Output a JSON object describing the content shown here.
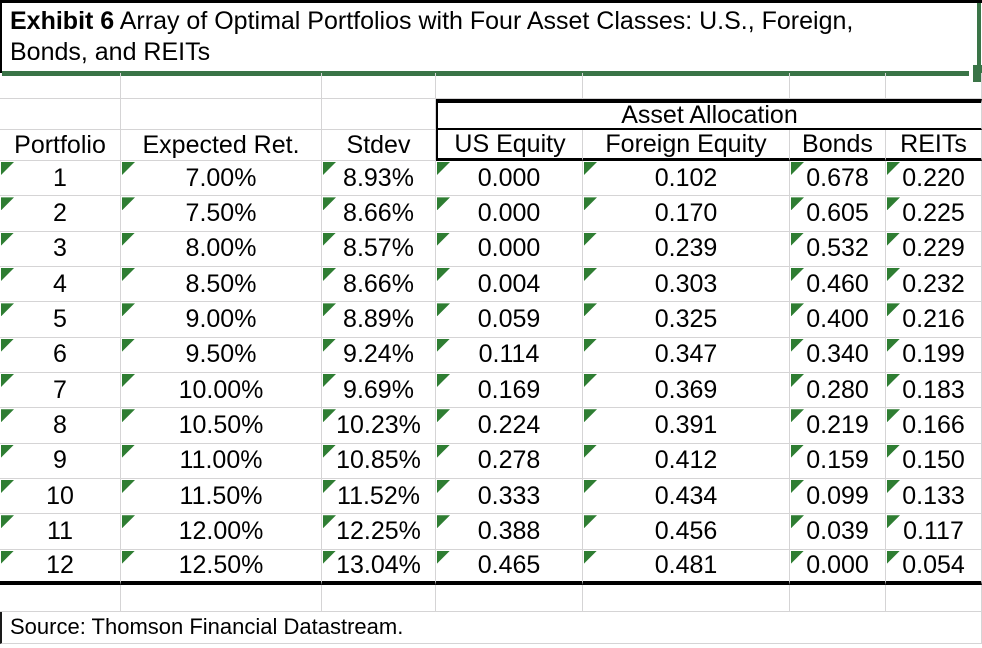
{
  "title": {
    "bold": "Exhibit 6",
    "line1_rest": " Array of Optimal Portfolios with Four Asset Classes: U.S., Foreign,",
    "line2": "Bonds, and REITs"
  },
  "colors": {
    "title_rule_green": "#3a7447",
    "flag_triangle_green": "#2e7d32",
    "gridline_gray": "#d5d4d5"
  },
  "table": {
    "group_header": "Asset Allocation",
    "columns": [
      "Portfolio",
      "Expected Ret.",
      "Stdev",
      "US Equity",
      "Foreign Equity",
      "Bonds",
      "REITs"
    ],
    "rows": [
      [
        "1",
        "7.00%",
        "8.93%",
        "0.000",
        "0.102",
        "0.678",
        "0.220"
      ],
      [
        "2",
        "7.50%",
        "8.66%",
        "0.000",
        "0.170",
        "0.605",
        "0.225"
      ],
      [
        "3",
        "8.00%",
        "8.57%",
        "0.000",
        "0.239",
        "0.532",
        "0.229"
      ],
      [
        "4",
        "8.50%",
        "8.66%",
        "0.004",
        "0.303",
        "0.460",
        "0.232"
      ],
      [
        "5",
        "9.00%",
        "8.89%",
        "0.059",
        "0.325",
        "0.400",
        "0.216"
      ],
      [
        "6",
        "9.50%",
        "9.24%",
        "0.114",
        "0.347",
        "0.340",
        "0.199"
      ],
      [
        "7",
        "10.00%",
        "9.69%",
        "0.169",
        "0.369",
        "0.280",
        "0.183"
      ],
      [
        "8",
        "10.50%",
        "10.23%",
        "0.224",
        "0.391",
        "0.219",
        "0.166"
      ],
      [
        "9",
        "11.00%",
        "10.85%",
        "0.278",
        "0.412",
        "0.159",
        "0.150"
      ],
      [
        "10",
        "11.50%",
        "11.52%",
        "0.333",
        "0.434",
        "0.099",
        "0.133"
      ],
      [
        "11",
        "12.00%",
        "12.25%",
        "0.388",
        "0.456",
        "0.039",
        "0.117"
      ],
      [
        "12",
        "12.50%",
        "13.04%",
        "0.465",
        "0.481",
        "0.000",
        "0.054"
      ]
    ]
  },
  "source_note": "Source: Thomson Financial Datastream."
}
